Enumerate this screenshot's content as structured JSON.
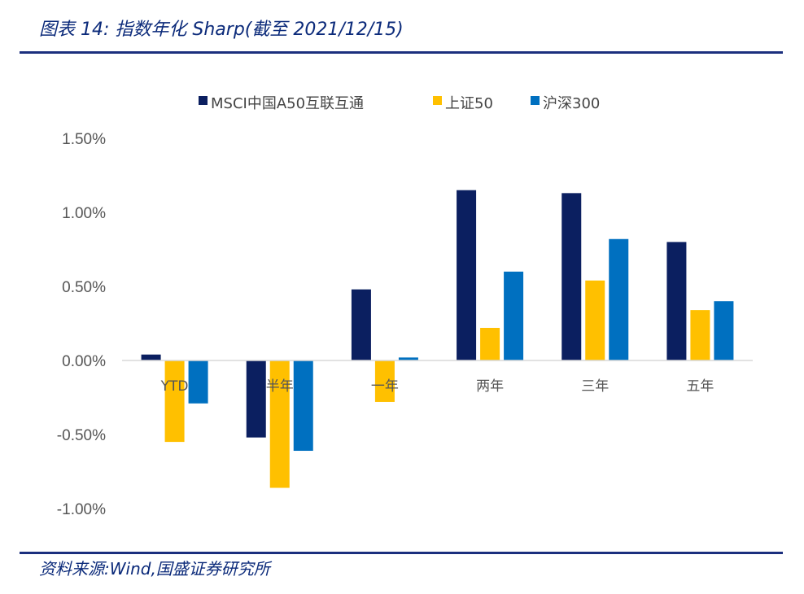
{
  "header": {
    "title": "图表 14:  指数年化 Sharp(截至 2021/12/15)"
  },
  "footer": {
    "source": "资料来源:Wind,国盛证券研究所"
  },
  "colors": {
    "rule": "#1b2f7e",
    "series": [
      "#0b1f60",
      "#ffc000",
      "#0070c0"
    ],
    "axis": "#d9d9d9",
    "text": "#555555"
  },
  "chart_data": {
    "type": "bar",
    "title": "指数年化 Sharp(截至 2021/12/15)",
    "categories": [
      "YTD",
      "半年",
      "一年",
      "两年",
      "三年",
      "五年"
    ],
    "series": [
      {
        "name": "MSCI中国A50互联互通",
        "values": [
          0.04,
          -0.52,
          0.48,
          1.15,
          1.13,
          0.8
        ]
      },
      {
        "name": "上证50",
        "values": [
          -0.55,
          -0.86,
          -0.28,
          0.22,
          0.54,
          0.34
        ]
      },
      {
        "name": "沪深300",
        "values": [
          -0.29,
          -0.61,
          0.02,
          0.6,
          0.82,
          0.4
        ]
      }
    ],
    "ylim": [
      -1.0,
      1.5
    ],
    "yticks": [
      1.5,
      1.0,
      0.5,
      0.0,
      -0.5,
      -1.0
    ],
    "ytick_labels": [
      "1.50%",
      "1.00%",
      "0.50%",
      "0.00%",
      "-0.50%",
      "-1.00%"
    ],
    "legend_position": "top-center",
    "grid": false,
    "xlabel": "",
    "ylabel": ""
  }
}
